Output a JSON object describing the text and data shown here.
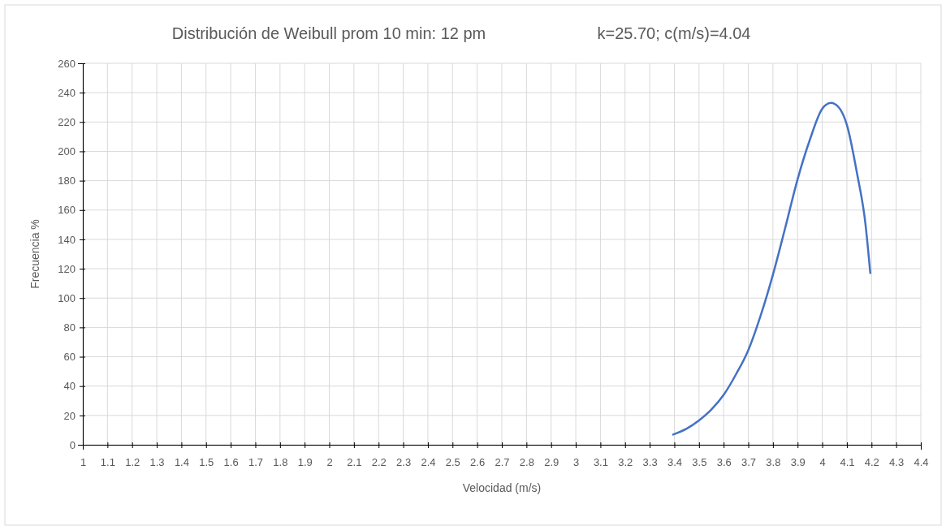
{
  "chart_data": {
    "type": "line",
    "title": "Distribución de Weibull prom 10 min: 12 pm",
    "subtitle": "k=25.70; c(m/s)=4.04",
    "xlabel": "Velocidad (m/s)",
    "ylabel": "Frecuencia %",
    "xlim": [
      1,
      4.4
    ],
    "xticks": [
      1,
      1.1,
      1.2,
      1.3,
      1.4,
      1.5,
      1.6,
      1.7,
      1.8,
      1.9,
      2,
      2.1,
      2.2,
      2.3,
      2.4,
      2.5,
      2.6,
      2.7,
      2.8,
      2.9,
      3,
      3.1,
      3.2,
      3.3,
      3.4,
      3.5,
      3.6,
      3.7,
      3.8,
      3.9,
      4,
      4.1,
      4.2,
      4.3,
      4.4
    ],
    "ylim": [
      0,
      260
    ],
    "yticks": [
      0,
      20,
      40,
      60,
      80,
      100,
      120,
      140,
      160,
      180,
      200,
      220,
      240,
      260
    ],
    "grid": true,
    "marker": "none",
    "line_style": "solid",
    "series": [
      {
        "color": "#4472c4",
        "x": [
          3.395,
          3.45,
          3.5,
          3.55,
          3.6,
          3.65,
          3.7,
          3.75,
          3.8,
          3.85,
          3.9,
          3.95,
          4.0,
          4.035,
          4.067,
          4.1,
          4.14,
          4.175,
          4.195
        ],
        "values": [
          7,
          11,
          16.6,
          24,
          34,
          48,
          64.5,
          88,
          116,
          148,
          181,
          208,
          229,
          233,
          230,
          218,
          186,
          151,
          117
        ]
      }
    ]
  }
}
